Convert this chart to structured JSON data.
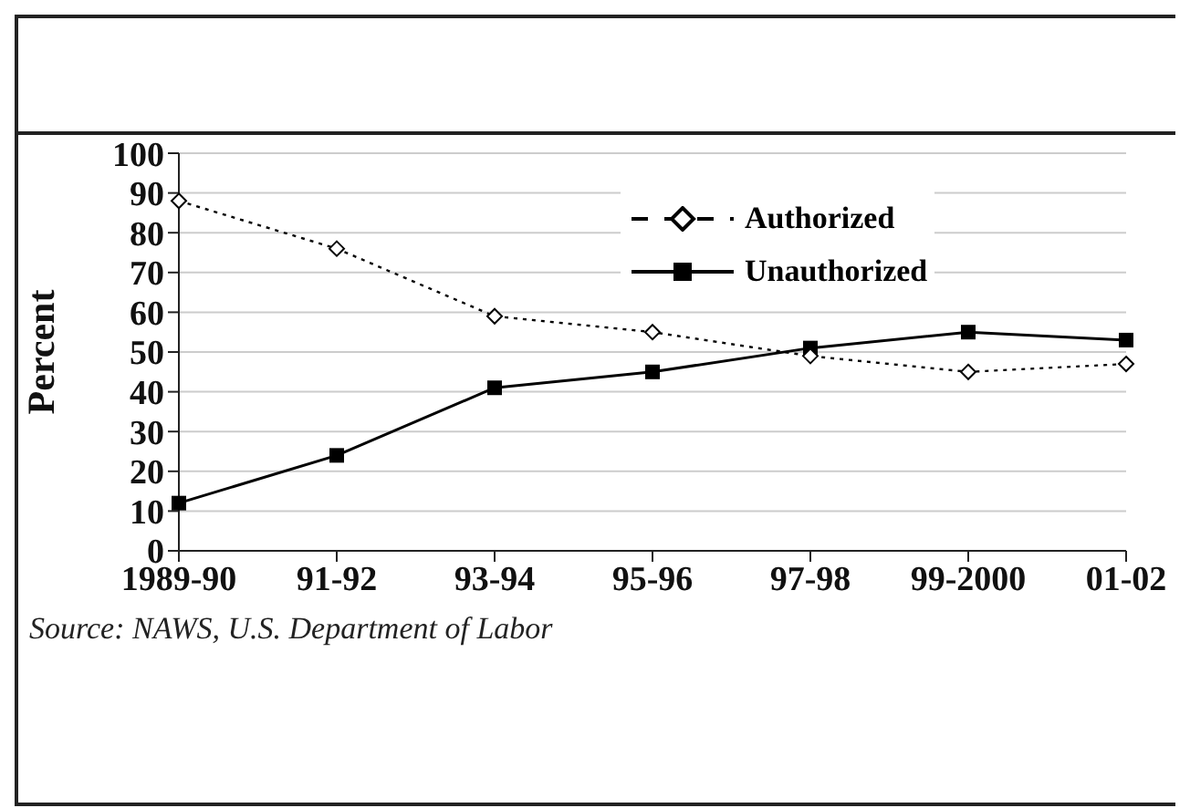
{
  "chart_data": {
    "type": "line",
    "ylabel": "Percent",
    "categories": [
      "1989-90",
      "91-92",
      "93-94",
      "95-96",
      "97-98",
      "99-2000",
      "01-02"
    ],
    "series": [
      {
        "name": "Authorized",
        "color": "#000000",
        "values": [
          88,
          76,
          59,
          55,
          49,
          45,
          47
        ],
        "marker": "diamond",
        "line_style": "dotted"
      },
      {
        "name": "Unauthorized",
        "color": "#000000",
        "values": [
          12,
          24,
          41,
          45,
          51,
          55,
          53
        ],
        "marker": "square",
        "line_style": "solid"
      }
    ],
    "ylim": [
      0,
      100
    ],
    "yticks": [
      0,
      10,
      20,
      30,
      40,
      50,
      60,
      70,
      80,
      90,
      100
    ],
    "grid": "y",
    "legend": "top right",
    "annotations": [
      "Source: NAWS, U.S. Department of Labor"
    ]
  }
}
